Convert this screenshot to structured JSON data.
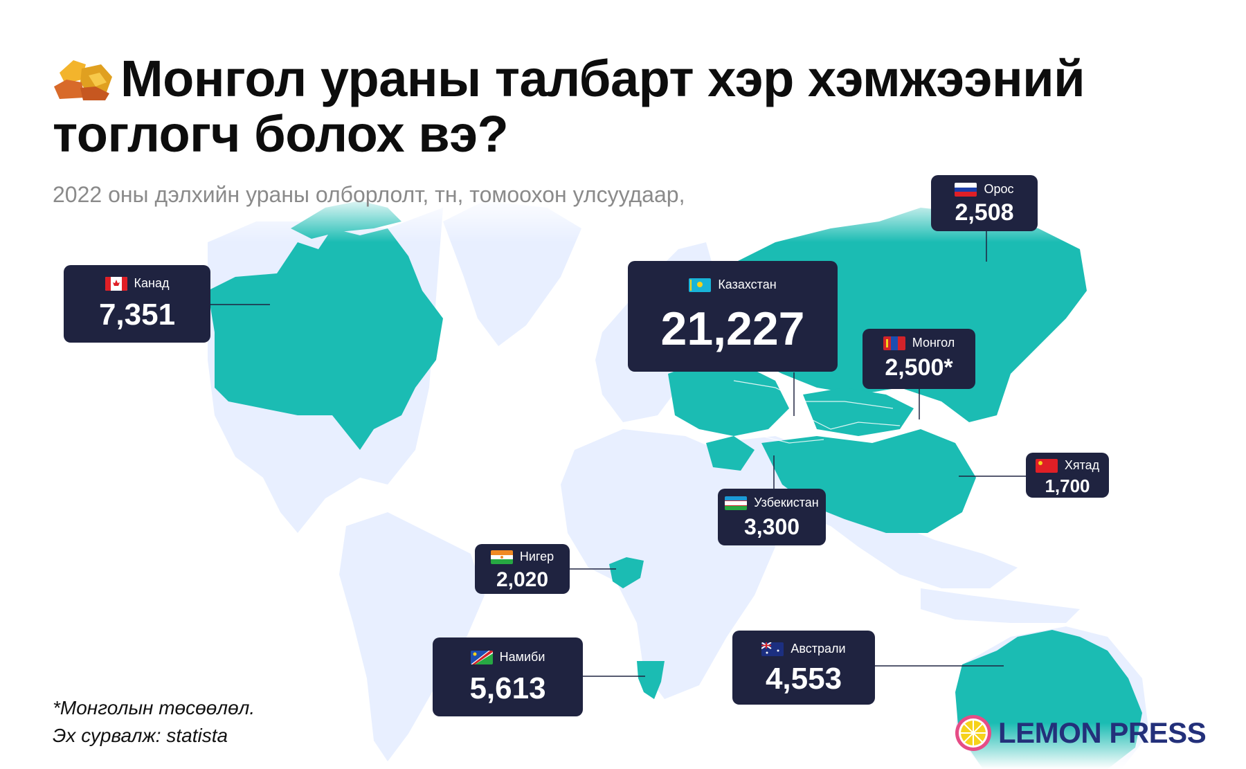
{
  "title": "Монгол ураны талбарт хэр хэмжээний тоглогч болох вэ?",
  "subtitle": "2022 оны дэлхийн ураны олборлолт, тн, томоохон улсуудаар,",
  "colors": {
    "highlight": "#1bbcb3",
    "land": "#e8efff",
    "card": "#1f2340",
    "logo": "#23307a"
  },
  "countries": {
    "canada": {
      "name": "Канад",
      "value": "7,351"
    },
    "kazakhstan": {
      "name": "Казахстан",
      "value": "21,227"
    },
    "russia": {
      "name": "Орос",
      "value": "2,508"
    },
    "mongolia": {
      "name": "Монгол",
      "value": "2,500*"
    },
    "china": {
      "name": "Хятад",
      "value": "1,700"
    },
    "uzbekistan": {
      "name": "Узбекистан",
      "value": "3,300"
    },
    "niger": {
      "name": "Нигер",
      "value": "2,020"
    },
    "namibia": {
      "name": "Намиби",
      "value": "5,613"
    },
    "australia": {
      "name": "Австрали",
      "value": "4,553"
    }
  },
  "footnote": "*Монголын төсөөлөл.",
  "source": "Эх сурвалж: statista",
  "logo": {
    "text": "LEMON PRESS",
    "icon": "lemon-icon"
  }
}
